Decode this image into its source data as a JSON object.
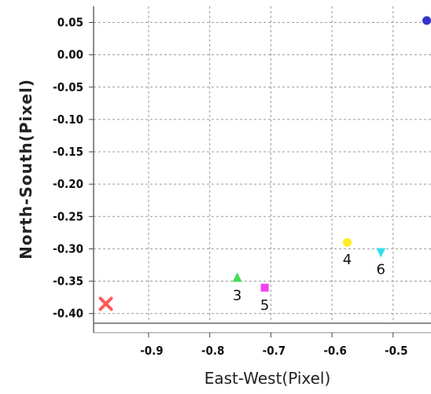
{
  "chart_data": {
    "type": "scatter",
    "xlabel": "East-West(Pixel)",
    "ylabel": "North-South(Pixel)",
    "xlim": [
      -0.99,
      -0.438
    ],
    "ylim": [
      -0.415,
      0.075
    ],
    "x_ticks": [
      {
        "value": -0.9,
        "label": "-0.9"
      },
      {
        "value": -0.8,
        "label": "-0.8"
      },
      {
        "value": -0.7,
        "label": "-0.7"
      },
      {
        "value": -0.6,
        "label": "-0.6"
      },
      {
        "value": -0.5,
        "label": "-0.5"
      }
    ],
    "y_ticks": [
      {
        "value": 0.05,
        "label": "0.05"
      },
      {
        "value": 0.0,
        "label": "0.00"
      },
      {
        "value": -0.05,
        "label": "-0.05"
      },
      {
        "value": -0.1,
        "label": "-0.10"
      },
      {
        "value": -0.15,
        "label": "-0.15"
      },
      {
        "value": -0.2,
        "label": "-0.20"
      },
      {
        "value": -0.25,
        "label": "-0.25"
      },
      {
        "value": -0.3,
        "label": "-0.30"
      },
      {
        "value": -0.35,
        "label": "-0.35"
      },
      {
        "value": -0.4,
        "label": "-0.40"
      }
    ],
    "grid": true,
    "points": [
      {
        "label": "",
        "x": -0.97,
        "y": -0.385,
        "marker": "x",
        "color": "#ff5a5a"
      },
      {
        "label": "3",
        "x": -0.755,
        "y": -0.345,
        "marker": "triangle",
        "color": "#44dd55"
      },
      {
        "label": "5",
        "x": -0.71,
        "y": -0.36,
        "marker": "square",
        "color": "#ee44ee"
      },
      {
        "label": "4",
        "x": -0.575,
        "y": -0.29,
        "marker": "circle",
        "color": "#ffee22"
      },
      {
        "label": "6",
        "x": -0.52,
        "y": -0.305,
        "marker": "triangle-down",
        "color": "#33ddee"
      },
      {
        "label": "",
        "x": -0.445,
        "y": 0.053,
        "marker": "circle",
        "color": "#3333cc"
      }
    ]
  }
}
